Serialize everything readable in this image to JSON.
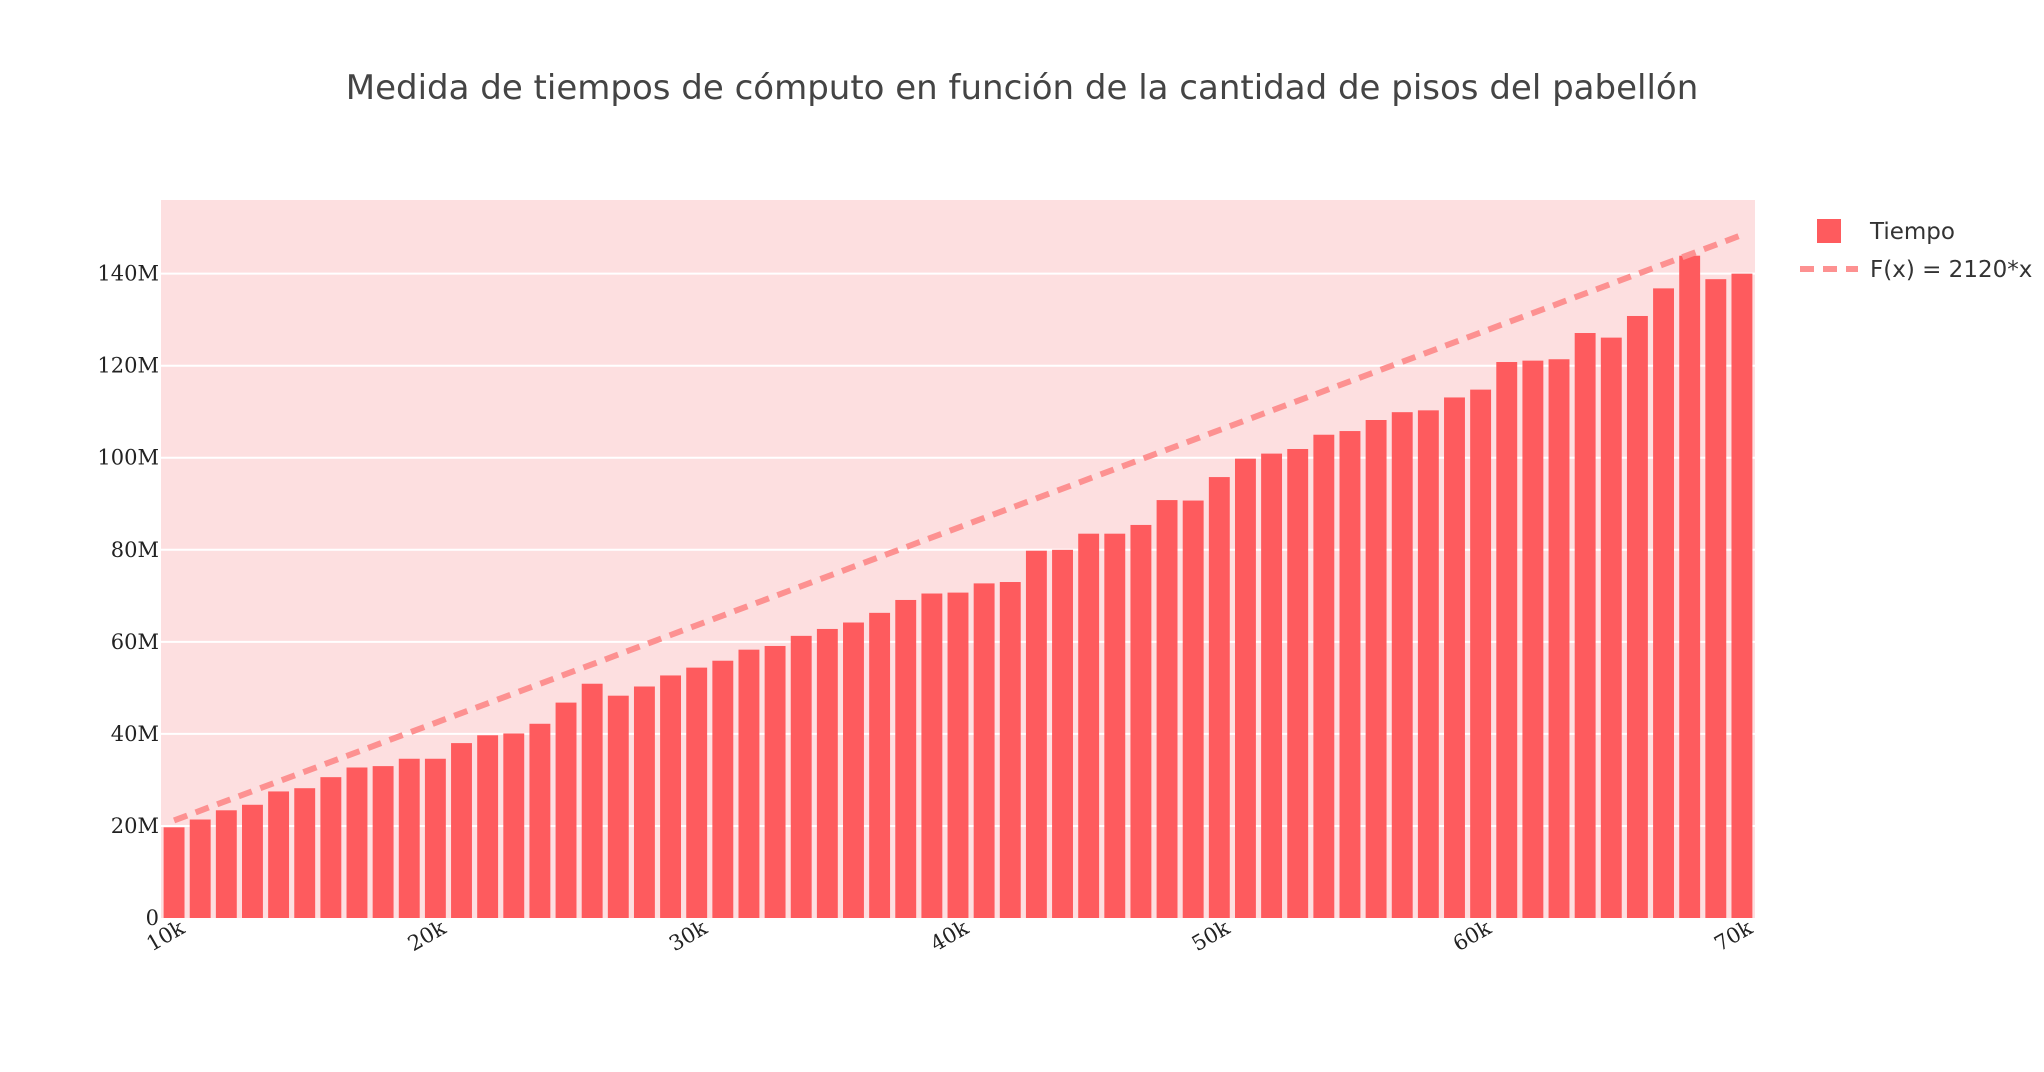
{
  "chart_data": {
    "type": "bar",
    "title": "Medida de tiempos de cómputo en función de la cantidad de pisos del pabellón",
    "xlabel": "",
    "ylabel": "",
    "colors": {
      "plot_background": "#fddfe0",
      "bars": "#fe5b5e",
      "line": "#fd9191",
      "grid": "#ffffff"
    },
    "grid": true,
    "legend_position": "top-right",
    "x_range": [
      9500,
      70500
    ],
    "y_range": [
      0,
      156000000
    ],
    "x_ticks": [
      {
        "value": 10000,
        "label": "10k"
      },
      {
        "value": 20000,
        "label": "20k"
      },
      {
        "value": 30000,
        "label": "30k"
      },
      {
        "value": 40000,
        "label": "40k"
      },
      {
        "value": 50000,
        "label": "50k"
      },
      {
        "value": 60000,
        "label": "60k"
      },
      {
        "value": 70000,
        "label": "70k"
      }
    ],
    "y_ticks": [
      {
        "value": 0,
        "label": "0"
      },
      {
        "value": 20000000,
        "label": "20M"
      },
      {
        "value": 40000000,
        "label": "40M"
      },
      {
        "value": 60000000,
        "label": "60M"
      },
      {
        "value": 80000000,
        "label": "80M"
      },
      {
        "value": 100000000,
        "label": "100M"
      },
      {
        "value": 120000000,
        "label": "120M"
      },
      {
        "value": 140000000,
        "label": "140M"
      }
    ],
    "series": [
      {
        "name": "Tiempo",
        "type": "bar",
        "x": [
          10000,
          11000,
          12000,
          13000,
          14000,
          15000,
          16000,
          17000,
          18000,
          19000,
          20000,
          21000,
          22000,
          23000,
          24000,
          25000,
          26000,
          27000,
          28000,
          29000,
          30000,
          31000,
          32000,
          33000,
          34000,
          35000,
          36000,
          37000,
          38000,
          39000,
          40000,
          41000,
          42000,
          43000,
          44000,
          45000,
          46000,
          47000,
          48000,
          49000,
          50000,
          51000,
          52000,
          53000,
          54000,
          55000,
          56000,
          57000,
          58000,
          59000,
          60000,
          61000,
          62000,
          63000,
          64000,
          65000,
          66000,
          67000,
          68000,
          69000,
          70000
        ],
        "values": [
          19700000,
          21400000,
          23400000,
          24600000,
          27500000,
          28200000,
          30600000,
          32700000,
          33000000,
          34600000,
          34600000,
          38000000,
          39700000,
          40100000,
          42200000,
          46800000,
          50900000,
          48300000,
          50300000,
          52700000,
          54400000,
          55900000,
          58300000,
          59100000,
          61300000,
          62800000,
          64200000,
          66300000,
          69100000,
          70500000,
          70700000,
          72700000,
          73000000,
          79800000,
          80000000,
          83500000,
          83500000,
          85400000,
          90800000,
          90700000,
          95800000,
          99800000,
          100900000,
          101900000,
          105000000,
          105800000,
          108200000,
          109900000,
          110300000,
          113100000,
          114800000,
          120800000,
          121100000,
          121400000,
          127100000,
          126100000,
          130800000,
          136800000,
          143900000,
          138800000,
          140000000
        ]
      },
      {
        "name": "F(x) = 2120*x",
        "type": "line",
        "dash": "dash",
        "x": [
          10000,
          70000
        ],
        "values": [
          21200000,
          148400000
        ]
      }
    ]
  }
}
